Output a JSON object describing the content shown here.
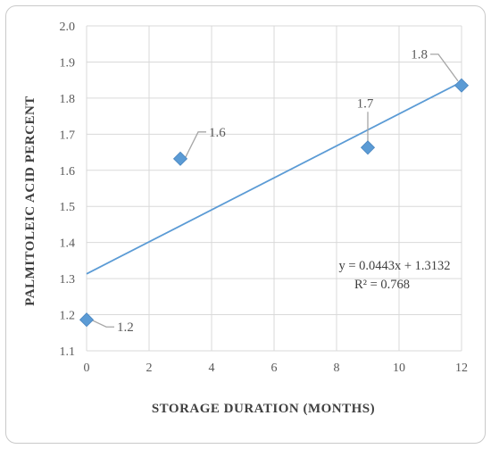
{
  "chart_data": {
    "type": "scatter",
    "title": "",
    "xlabel": "STORAGE   DURATION (MONTHS)",
    "ylabel": "PALMITOLEIC ACID PERCENT",
    "xlim": [
      0,
      12
    ],
    "ylim": [
      1.1,
      2.0
    ],
    "x_ticks": [
      "0",
      "2",
      "4",
      "6",
      "8",
      "10",
      "12"
    ],
    "y_ticks": [
      "1.1",
      "1.2",
      "1.3",
      "1.4",
      "1.5",
      "1.6",
      "1.7",
      "1.8",
      "1.9",
      "2.0"
    ],
    "grid": true,
    "marker_color": "#5b9bd5",
    "trendline_color": "#5b9bd5",
    "points": [
      {
        "x": 0,
        "y": 1.186,
        "label": "1.2"
      },
      {
        "x": 3,
        "y": 1.632,
        "label": "1.6"
      },
      {
        "x": 9,
        "y": 1.663,
        "label": "1.7"
      },
      {
        "x": 12,
        "y": 1.835,
        "label": "1.8"
      }
    ],
    "trendline": {
      "slope": 0.0443,
      "intercept": 1.3132,
      "equation": "y = 0.0443x + 1.3132",
      "r_squared": "R² = 0.768"
    }
  }
}
